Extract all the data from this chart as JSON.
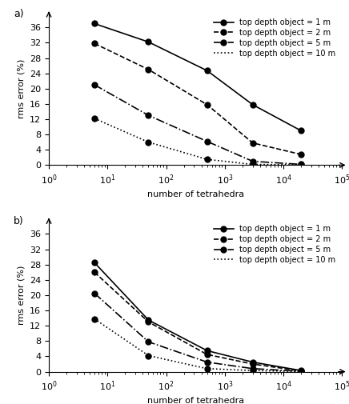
{
  "panel_a": {
    "label": "a)",
    "series": [
      {
        "label": "top depth object = 1 m",
        "linestyle": "-",
        "marker": "o",
        "x": [
          6,
          50,
          500,
          3000,
          20000
        ],
        "y": [
          37.0,
          32.2,
          24.7,
          15.8,
          9.0
        ]
      },
      {
        "label": "top depth object = 2 m",
        "linestyle": "--",
        "marker": "o",
        "x": [
          6,
          50,
          500,
          3000,
          20000
        ],
        "y": [
          31.8,
          25.0,
          15.8,
          5.8,
          2.8
        ]
      },
      {
        "label": "top depth object = 5 m",
        "linestyle": "-.",
        "marker": "o",
        "x": [
          6,
          50,
          500,
          3000,
          20000
        ],
        "y": [
          21.0,
          13.0,
          6.2,
          1.0,
          0.2
        ]
      },
      {
        "label": "top depth object = 10 m",
        "linestyle": ":",
        "marker": "o",
        "x": [
          6,
          50,
          500,
          3000,
          20000
        ],
        "y": [
          12.2,
          6.0,
          1.5,
          0.2,
          0.05
        ]
      }
    ],
    "ylabel": "rms error (%)",
    "xlabel": "number of tetrahedra",
    "ylim": [
      0,
      40
    ],
    "yticks": [
      0,
      4,
      8,
      12,
      16,
      20,
      24,
      28,
      32,
      36
    ],
    "xlim": [
      1,
      100000.0
    ]
  },
  "panel_b": {
    "label": "b)",
    "series": [
      {
        "label": "top depth object = 1 m",
        "linestyle": "-",
        "marker": "o",
        "x": [
          6,
          50,
          500,
          3000,
          20000
        ],
        "y": [
          28.5,
          13.5,
          5.5,
          2.5,
          0.3
        ]
      },
      {
        "label": "top depth object = 2 m",
        "linestyle": "--",
        "marker": "o",
        "x": [
          6,
          50,
          500,
          3000,
          20000
        ],
        "y": [
          26.0,
          13.0,
          4.5,
          2.0,
          0.2
        ]
      },
      {
        "label": "top depth object = 5 m",
        "linestyle": "-.",
        "marker": "o",
        "x": [
          6,
          50,
          500,
          3000,
          20000
        ],
        "y": [
          20.5,
          7.8,
          2.5,
          0.8,
          0.1
        ]
      },
      {
        "label": "top depth object = 10 m",
        "linestyle": ":",
        "marker": "o",
        "x": [
          6,
          50,
          500,
          3000,
          20000
        ],
        "y": [
          13.8,
          4.2,
          0.8,
          0.3,
          0.05
        ]
      }
    ],
    "ylabel": "rms error (%)",
    "xlabel": "number of tetrahedra",
    "ylim": [
      0,
      40
    ],
    "yticks": [
      0,
      4,
      8,
      12,
      16,
      20,
      24,
      28,
      32,
      36
    ],
    "xlim": [
      1,
      100000.0
    ]
  },
  "line_color": "black",
  "marker_color": "black",
  "marker_size": 5,
  "linewidth": 1.2,
  "legend_fontsize": 7,
  "axis_fontsize": 8,
  "label_fontsize": 9
}
